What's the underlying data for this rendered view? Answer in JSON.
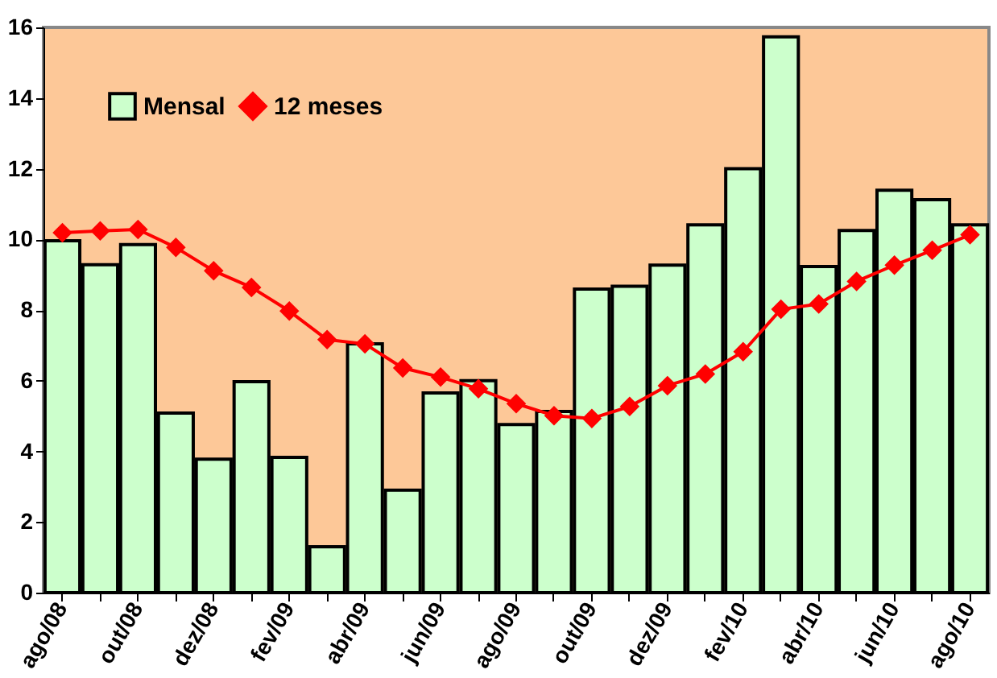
{
  "chart_data": {
    "type": "bar",
    "categories": [
      "ago/08",
      null,
      "out/08",
      null,
      "dez/08",
      null,
      "fev/09",
      null,
      "abr/09",
      null,
      "jun/09",
      null,
      "ago/09",
      null,
      "out/09",
      null,
      "dez/09",
      null,
      "fev/10",
      null,
      "abr/10",
      null,
      "jun/10",
      null,
      "ago/10"
    ],
    "series": [
      {
        "name": "Mensal",
        "color": "#ccffcc",
        "values": [
          9.96,
          9.28,
          9.85,
          5.08,
          3.78,
          5.97,
          3.83,
          1.3,
          7.04,
          2.9,
          5.65,
          6.0,
          4.76,
          5.13,
          8.59,
          8.67,
          9.27,
          10.41,
          12.0,
          15.73,
          9.23,
          10.25,
          11.39,
          11.12,
          10.41
        ]
      },
      {
        "name": "12 meses",
        "type": "line",
        "color": "#ff0000",
        "marker": "diamond",
        "values": [
          10.19,
          10.24,
          10.28,
          9.77,
          9.11,
          8.64,
          7.97,
          7.16,
          7.04,
          6.36,
          6.1,
          5.77,
          5.35,
          5.01,
          4.93,
          5.27,
          5.86,
          6.19,
          6.82,
          8.02,
          8.17,
          8.81,
          9.27,
          9.69,
          10.13
        ]
      }
    ],
    "ylim": [
      0,
      16
    ],
    "yticks": [
      0,
      2,
      4,
      6,
      8,
      10,
      12,
      14,
      16
    ],
    "grid": false,
    "legend": "top left"
  }
}
